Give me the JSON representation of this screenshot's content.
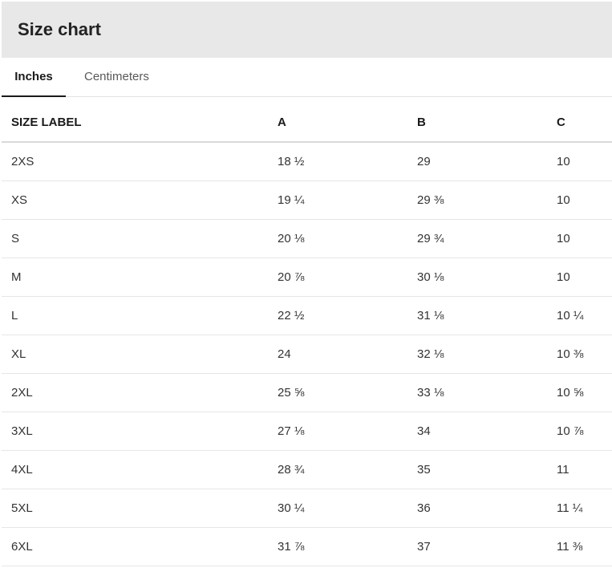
{
  "header": {
    "title": "Size chart"
  },
  "tabs": [
    {
      "label": "Inches",
      "active": true
    },
    {
      "label": "Centimeters",
      "active": false
    }
  ],
  "table": {
    "columns": [
      "SIZE LABEL",
      "A",
      "B",
      "C"
    ],
    "rows": [
      [
        "2XS",
        "18 ½",
        "29",
        "10"
      ],
      [
        "XS",
        "19 ¼",
        "29 ⅜",
        "10"
      ],
      [
        "S",
        "20 ⅛",
        "29 ¾",
        "10"
      ],
      [
        "M",
        "20 ⅞",
        "30 ⅛",
        "10"
      ],
      [
        "L",
        "22 ½",
        "31 ⅛",
        "10 ¼"
      ],
      [
        "XL",
        "24",
        "32 ⅛",
        "10 ⅜"
      ],
      [
        "2XL",
        "25 ⅝",
        "33 ⅛",
        "10 ⅝"
      ],
      [
        "3XL",
        "27 ⅛",
        "34",
        "10 ⅞"
      ],
      [
        "4XL",
        "28 ¾",
        "35",
        "11"
      ],
      [
        "5XL",
        "30 ¼",
        "36",
        "11 ¼"
      ],
      [
        "6XL",
        "31 ⅞",
        "37",
        "11 ⅜"
      ]
    ]
  }
}
